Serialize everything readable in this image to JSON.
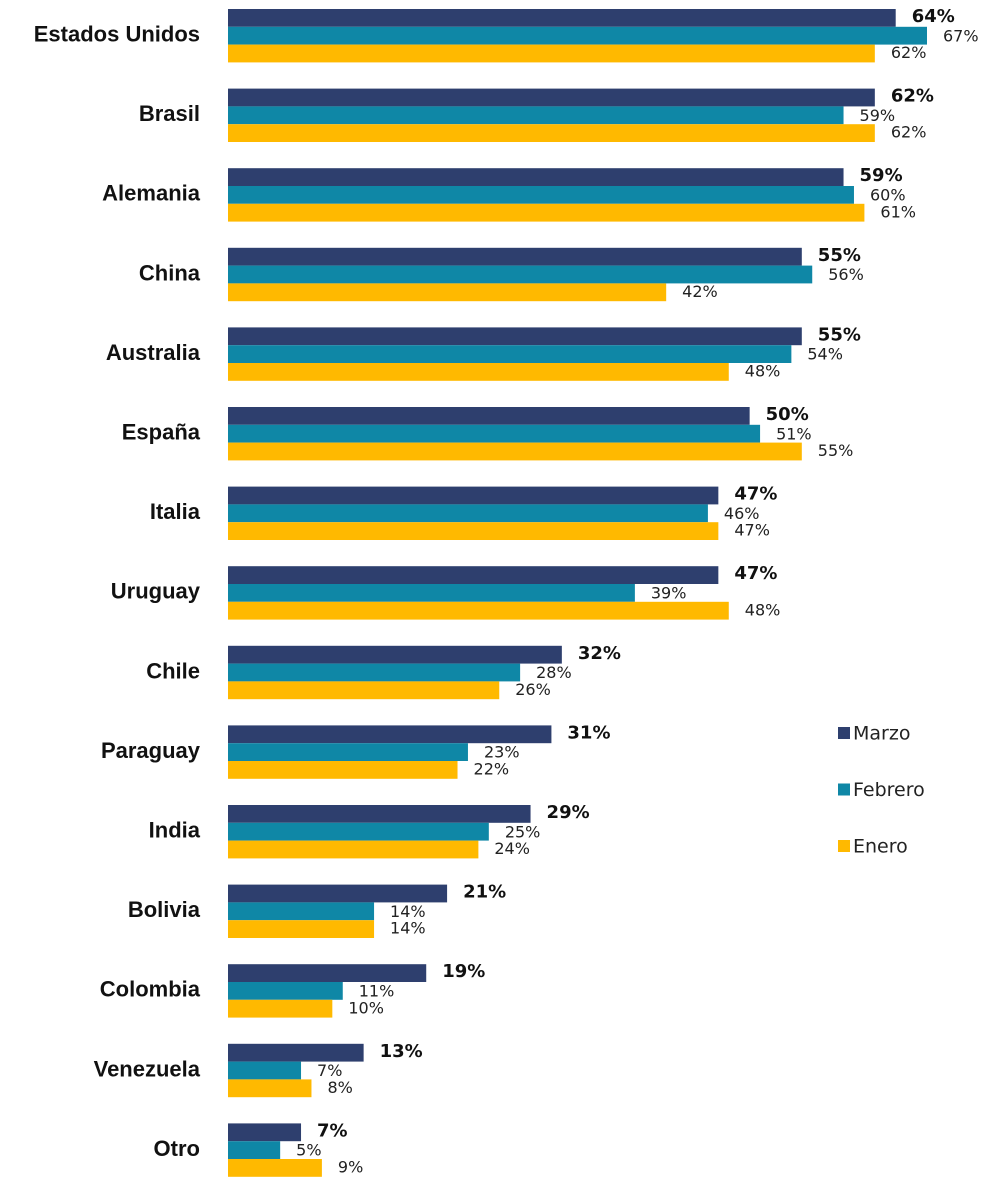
{
  "chart_data": {
    "type": "bar",
    "orientation": "horizontal",
    "categories": [
      "Estados Unidos",
      "Brasil",
      "Alemania",
      "China",
      "Australia",
      "España",
      "Italia",
      "Uruguay",
      "Chile",
      "Paraguay",
      "India",
      "Bolivia",
      "Colombia",
      "Venezuela",
      "Otro"
    ],
    "series": [
      {
        "name": "Marzo",
        "color": "#2e3f6e",
        "values": [
          64,
          62,
          59,
          55,
          55,
          50,
          47,
          47,
          32,
          31,
          29,
          21,
          19,
          13,
          7
        ],
        "value_labels": [
          "64%",
          "62%",
          "59%",
          "55%",
          "55%",
          "50%",
          "47%",
          "47%",
          "32%",
          "31%",
          "29%",
          "21%",
          "19%",
          "13%",
          "7%"
        ]
      },
      {
        "name": "Febrero",
        "color": "#0f87a6",
        "values": [
          67,
          59,
          60,
          56,
          54,
          51,
          46,
          39,
          28,
          23,
          25,
          14,
          11,
          7,
          5
        ],
        "value_labels": [
          "67%",
          "59%",
          "60%",
          "56%",
          "54%",
          "51%",
          "46%",
          "39%",
          "28%",
          "23%",
          "25%",
          "14%",
          "11%",
          "7%",
          "5%"
        ]
      },
      {
        "name": "Enero",
        "color": "#ffb900",
        "values": [
          62,
          62,
          61,
          42,
          48,
          55,
          47,
          48,
          26,
          22,
          24,
          14,
          10,
          8,
          9
        ],
        "value_labels": [
          "62%",
          "62%",
          "61%",
          "42%",
          "48%",
          "55%",
          "47%",
          "48%",
          "26%",
          "22%",
          "24%",
          "14%",
          "10%",
          "8%",
          "9%"
        ]
      }
    ],
    "legend": "right"
  }
}
